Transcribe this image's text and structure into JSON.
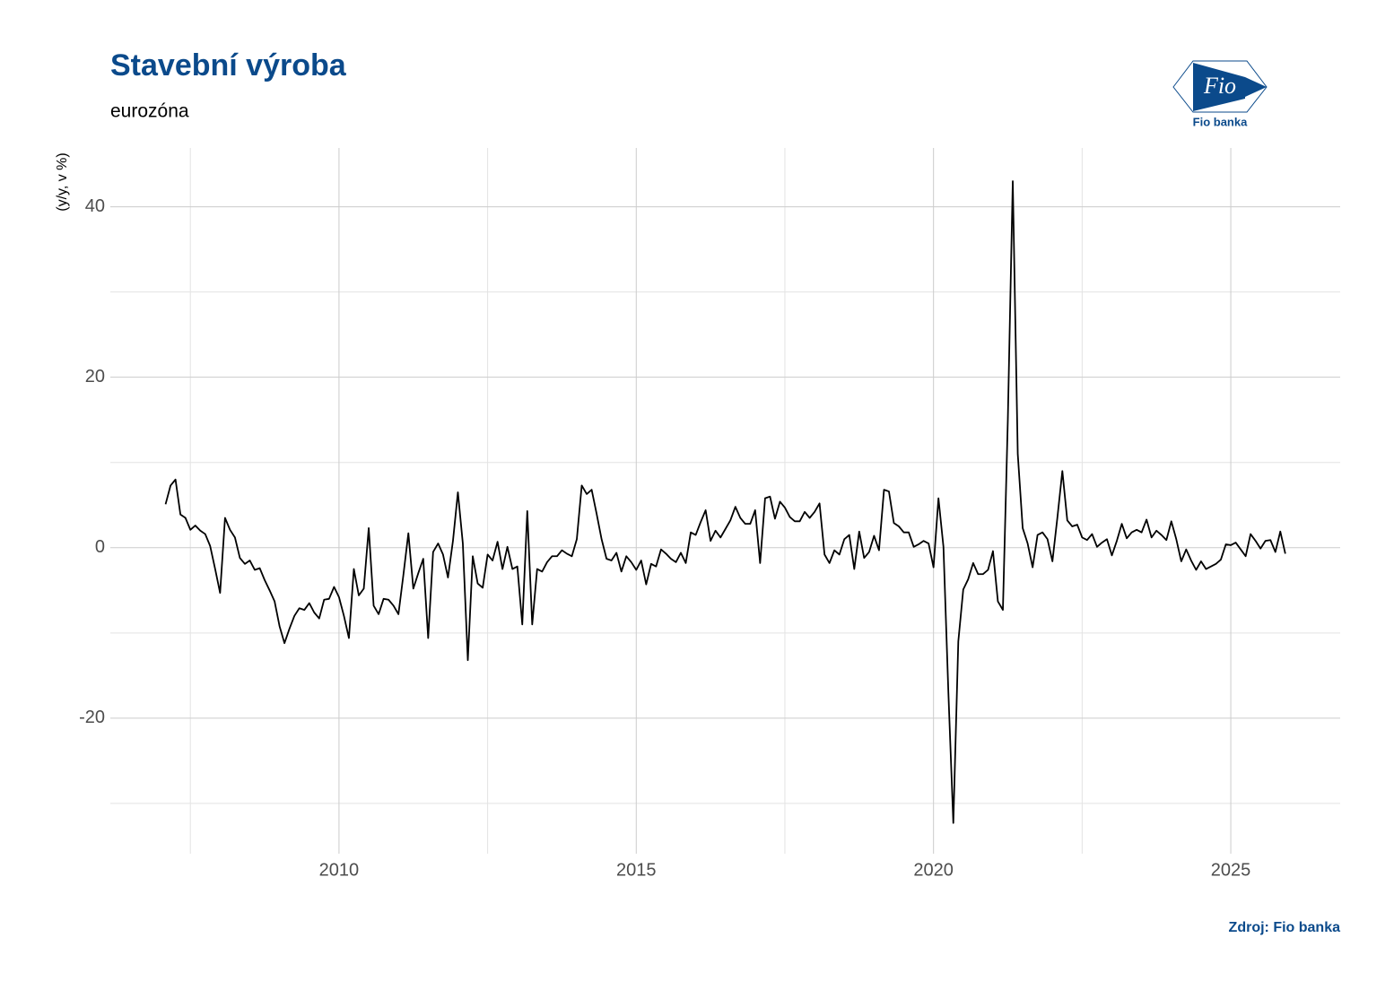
{
  "chart_data": {
    "type": "line",
    "title": "Stavební výroba",
    "subtitle": "eurozóna",
    "y_label": "(y/y, v %)",
    "source": "Zdroj: Fio banka",
    "x": [
      2007.083,
      2007.167,
      2007.25,
      2007.333,
      2007.417,
      2007.5,
      2007.583,
      2007.667,
      2007.75,
      2007.833,
      2007.917,
      2008,
      2008.083,
      2008.167,
      2008.25,
      2008.333,
      2008.417,
      2008.5,
      2008.583,
      2008.667,
      2008.75,
      2008.833,
      2008.917,
      2009,
      2009.083,
      2009.167,
      2009.25,
      2009.333,
      2009.417,
      2009.5,
      2009.583,
      2009.667,
      2009.75,
      2009.833,
      2009.917,
      2010,
      2010.083,
      2010.167,
      2010.25,
      2010.333,
      2010.417,
      2010.5,
      2010.583,
      2010.667,
      2010.75,
      2010.833,
      2010.917,
      2011,
      2011.083,
      2011.167,
      2011.25,
      2011.333,
      2011.417,
      2011.5,
      2011.583,
      2011.667,
      2011.75,
      2011.833,
      2011.917,
      2012,
      2012.083,
      2012.167,
      2012.25,
      2012.333,
      2012.417,
      2012.5,
      2012.583,
      2012.667,
      2012.75,
      2012.833,
      2012.917,
      2013,
      2013.083,
      2013.167,
      2013.25,
      2013.333,
      2013.417,
      2013.5,
      2013.583,
      2013.667,
      2013.75,
      2013.833,
      2013.917,
      2014,
      2014.083,
      2014.167,
      2014.25,
      2014.333,
      2014.417,
      2014.5,
      2014.583,
      2014.667,
      2014.75,
      2014.833,
      2014.917,
      2015,
      2015.083,
      2015.167,
      2015.25,
      2015.333,
      2015.417,
      2015.5,
      2015.583,
      2015.667,
      2015.75,
      2015.833,
      2015.917,
      2016,
      2016.083,
      2016.167,
      2016.25,
      2016.333,
      2016.417,
      2016.5,
      2016.583,
      2016.667,
      2016.75,
      2016.833,
      2016.917,
      2017,
      2017.083,
      2017.167,
      2017.25,
      2017.333,
      2017.417,
      2017.5,
      2017.583,
      2017.667,
      2017.75,
      2017.833,
      2017.917,
      2018,
      2018.083,
      2018.167,
      2018.25,
      2018.333,
      2018.417,
      2018.5,
      2018.583,
      2018.667,
      2018.75,
      2018.833,
      2018.917,
      2019,
      2019.083,
      2019.167,
      2019.25,
      2019.333,
      2019.417,
      2019.5,
      2019.583,
      2019.667,
      2019.75,
      2019.833,
      2019.917,
      2020,
      2020.083,
      2020.167,
      2020.25,
      2020.333,
      2020.417,
      2020.5,
      2020.583,
      2020.667,
      2020.75,
      2020.833,
      2020.917,
      2021,
      2021.083,
      2021.167,
      2021.25,
      2021.333,
      2021.417,
      2021.5,
      2021.583,
      2021.667,
      2021.75,
      2021.833,
      2021.917,
      2022,
      2022.083,
      2022.167,
      2022.25,
      2022.333,
      2022.417,
      2022.5,
      2022.583,
      2022.667,
      2022.75,
      2022.833,
      2022.917,
      2023,
      2023.083,
      2023.167,
      2023.25,
      2023.333,
      2023.417,
      2023.5,
      2023.583,
      2023.667,
      2023.75,
      2023.833,
      2023.917,
      2024,
      2024.083,
      2024.167,
      2024.25,
      2024.333,
      2024.417,
      2024.5,
      2024.583,
      2024.667,
      2024.75,
      2024.833,
      2024.917,
      2025,
      2025.083,
      2025.167,
      2025.25,
      2025.333,
      2025.417,
      2025.5,
      2025.583,
      2025.667,
      2025.75,
      2025.833,
      2025.917
    ],
    "series": [
      {
        "color": "#000000",
        "values": [
          5.1,
          7.3,
          8.0,
          3.9,
          3.5,
          2.1,
          2.6,
          2.0,
          1.6,
          0.2,
          -2.5,
          -5.3,
          3.5,
          2.1,
          1.2,
          -1.2,
          -1.9,
          -1.5,
          -2.6,
          -2.4,
          -3.8,
          -5.0,
          -6.3,
          -9.2,
          -11.2,
          -9.5,
          -8.0,
          -7.1,
          -7.3,
          -6.5,
          -7.6,
          -8.3,
          -6.1,
          -6.0,
          -4.6,
          -5.8,
          -8.0,
          -10.6,
          -2.5,
          -5.6,
          -4.8,
          2.3,
          -6.8,
          -7.8,
          -6.0,
          -6.1,
          -6.8,
          -7.8,
          -3.2,
          1.7,
          -4.8,
          -3.0,
          -1.3,
          -10.6,
          -0.5,
          0.5,
          -0.8,
          -3.5,
          0.8,
          6.5,
          0.5,
          -13.2,
          -1.0,
          -4.2,
          -4.7,
          -0.8,
          -1.5,
          0.7,
          -2.5,
          0.1,
          -2.5,
          -2.2,
          -9.0,
          4.3,
          -9.0,
          -2.5,
          -2.8,
          -1.7,
          -1.0,
          -1.0,
          -0.3,
          -0.7,
          -1.0,
          1.0,
          7.3,
          6.3,
          6.8,
          4.0,
          1.0,
          -1.3,
          -1.5,
          -0.6,
          -2.8,
          -1.0,
          -1.7,
          -2.6,
          -1.5,
          -4.3,
          -1.9,
          -2.2,
          -0.2,
          -0.7,
          -1.3,
          -1.7,
          -0.6,
          -1.8,
          1.8,
          1.5,
          3.0,
          4.4,
          0.8,
          2.0,
          1.2,
          2.2,
          3.2,
          4.8,
          3.5,
          2.8,
          2.8,
          4.4,
          -1.8,
          5.8,
          6.0,
          3.4,
          5.4,
          4.7,
          3.6,
          3.1,
          3.1,
          4.2,
          3.5,
          4.2,
          5.2,
          -0.8,
          -1.8,
          -0.3,
          -0.8,
          1.0,
          1.5,
          -2.5,
          1.9,
          -1.2,
          -0.5,
          1.4,
          -0.3,
          6.8,
          6.6,
          2.9,
          2.5,
          1.8,
          1.8,
          0.1,
          0.4,
          0.8,
          0.5,
          -2.3,
          5.8,
          0.1,
          -17.0,
          -32.3,
          -11.0,
          -4.9,
          -3.7,
          -1.8,
          -3.1,
          -3.1,
          -2.6,
          -0.4,
          -6.3,
          -7.3,
          15.0,
          43.0,
          11.0,
          2.3,
          0.5,
          -2.3,
          1.5,
          1.8,
          1.0,
          -1.6,
          3.5,
          9.0,
          3.2,
          2.5,
          2.7,
          1.2,
          0.9,
          1.6,
          0.1,
          0.6,
          1.0,
          -0.9,
          0.8,
          2.8,
          1.1,
          1.8,
          2.1,
          1.8,
          3.3,
          1.2,
          2.0,
          1.5,
          0.9,
          3.1,
          1.0,
          -1.6,
          -0.2,
          -1.5,
          -2.6,
          -1.6,
          -2.5,
          -2.2,
          -1.9,
          -1.4,
          0.4,
          0.3,
          0.6,
          -0.2,
          -1.0,
          1.6,
          0.8,
          -0.1,
          0.8,
          0.9,
          -0.5,
          1.9,
          -0.7
        ]
      }
    ],
    "xlim": [
      2006.154,
      2026.84
    ],
    "ylim": [
      -35.9,
      46.9
    ],
    "xticks": [
      2010,
      2015,
      2020,
      2025
    ],
    "yticks": [
      -20,
      0,
      20,
      40
    ],
    "x_minor_grid": [
      2007.5,
      2012.5,
      2017.5,
      2022.5
    ],
    "y_minor_grid": [
      -30,
      -10,
      10,
      30
    ],
    "grid": true
  },
  "logo": {
    "mark": "Fio",
    "name": "Fio banka"
  }
}
